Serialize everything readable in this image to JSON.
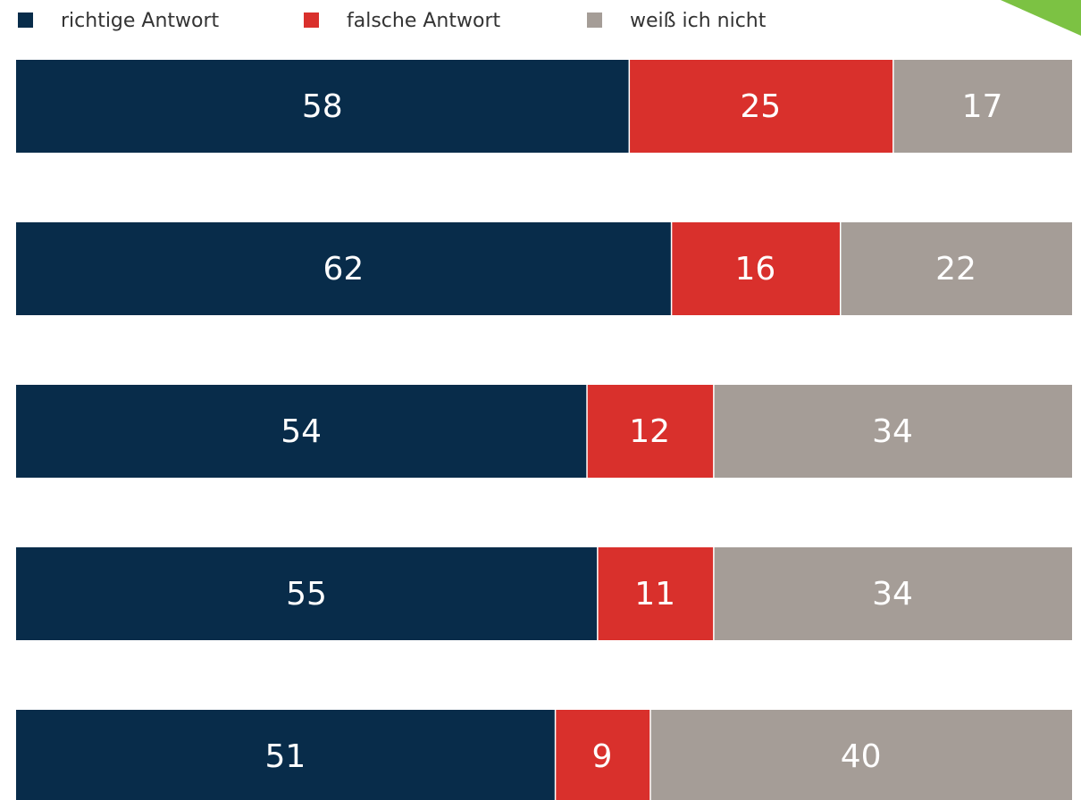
{
  "chart_data": {
    "type": "stacked-bar-horizontal",
    "categories": [
      null,
      null,
      null,
      null,
      null
    ],
    "series": [
      {
        "name": "richtige Antwort",
        "color": "#082c4a",
        "values": [
          58,
          62,
          54,
          55,
          51
        ]
      },
      {
        "name": "falsche Antwort",
        "color": "#d9302c",
        "values": [
          25,
          16,
          12,
          11,
          9
        ]
      },
      {
        "name": "weiß ich nicht",
        "color": "#a59d97",
        "values": [
          17,
          22,
          34,
          34,
          40
        ]
      }
    ],
    "xlim": [
      0,
      100
    ]
  }
}
